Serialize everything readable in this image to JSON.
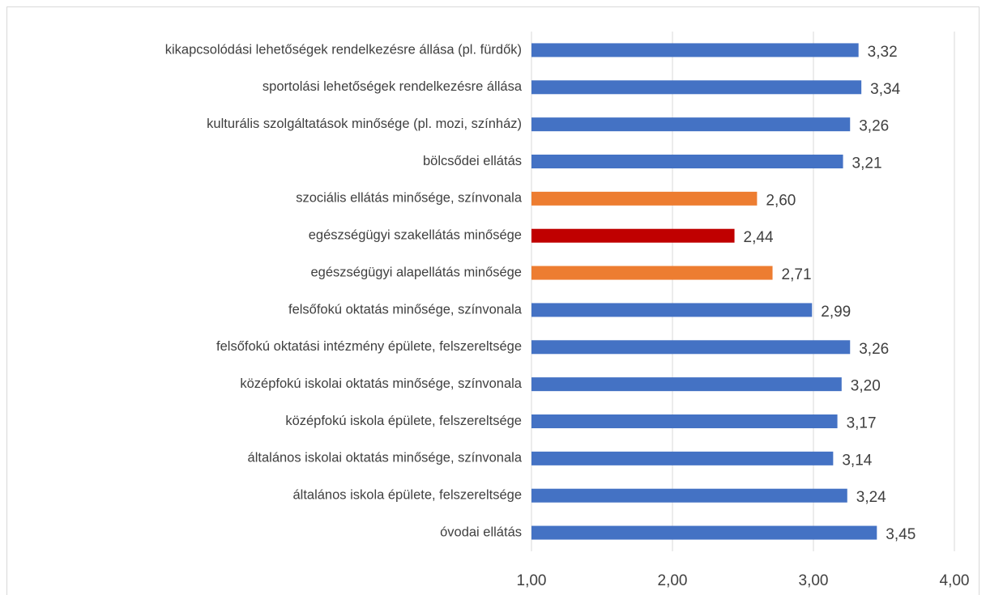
{
  "chart_data": {
    "type": "barh",
    "categories": [
      "kikapcsolódási lehetőségek rendelkezésre állása (pl. fürdők)",
      "sportolási lehetőségek rendelkezésre állása",
      "kulturális szolgáltatások minősége (pl. mozi, színház)",
      "bölcsődei ellátás",
      "szociális ellátás minősége, színvonala",
      "egészségügyi szakellátás minősége",
      "egészségügyi alapellátás minősége",
      "felsőfokú oktatás minősége, színvonala",
      "felsőfokú oktatási intézmény épülete, felszereltsége",
      "középfokú iskolai oktatás minősége, színvonala",
      "középfokú iskola épülete, felszereltsége",
      "általános iskolai oktatás minősége, színvonala",
      "általános iskola épülete, felszereltsége",
      "óvodai ellátás"
    ],
    "values": [
      3.32,
      3.34,
      3.26,
      3.21,
      2.6,
      2.44,
      2.71,
      2.99,
      3.26,
      3.2,
      3.17,
      3.14,
      3.24,
      3.45
    ],
    "value_labels": [
      "3,32",
      "3,34",
      "3,26",
      "3,21",
      "2,60",
      "2,44",
      "2,71",
      "2,99",
      "3,26",
      "3,20",
      "3,17",
      "3,14",
      "3,24",
      "3,45"
    ],
    "colors": [
      "#4472c4",
      "#4472c4",
      "#4472c4",
      "#4472c4",
      "#ed7d31",
      "#c00000",
      "#ed7d31",
      "#4472c4",
      "#4472c4",
      "#4472c4",
      "#4472c4",
      "#4472c4",
      "#4472c4",
      "#4472c4"
    ],
    "xlim": [
      1,
      4
    ],
    "xticks": [
      {
        "value": 1,
        "label": "1,00"
      },
      {
        "value": 2,
        "label": "2,00"
      },
      {
        "value": 3,
        "label": "3,00"
      },
      {
        "value": 4,
        "label": "4,00"
      }
    ],
    "grid": true
  }
}
